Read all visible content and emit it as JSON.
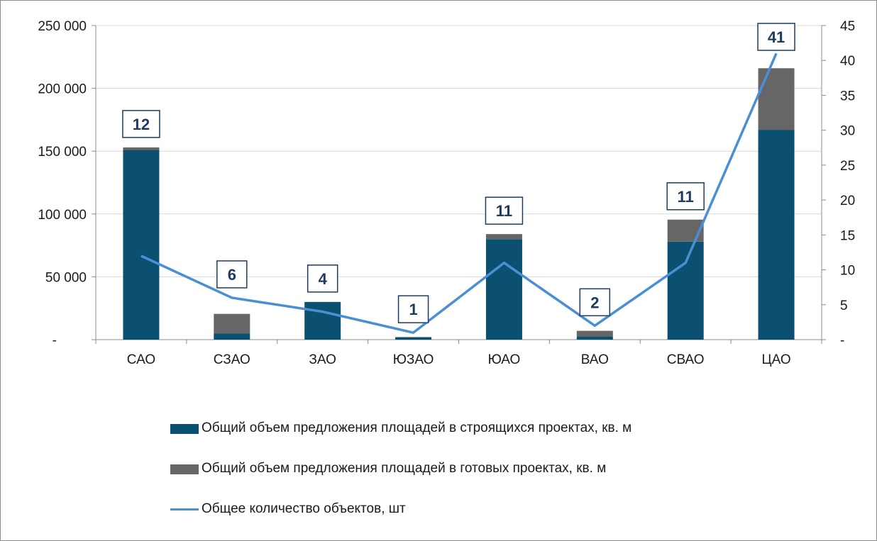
{
  "chart_data": {
    "type": "bar",
    "stacked": true,
    "categories": [
      "САО",
      "СЗАО",
      "ЗАО",
      "ЮЗАО",
      "ЮАО",
      "ВАО",
      "СВАО",
      "ЦАО"
    ],
    "series": [
      {
        "name": "Общий объем предложения площадей в строящихся проектах, кв. м",
        "kind": "bar",
        "axis": "left",
        "color": "#0b5070",
        "values": [
          151000,
          5000,
          30000,
          2000,
          80000,
          2500,
          78000,
          167000
        ]
      },
      {
        "name": "Общий объем предложения площадей в готовых проектах, кв. м",
        "kind": "bar",
        "axis": "left",
        "color": "#666666",
        "values": [
          2000,
          15500,
          0,
          0,
          4000,
          4500,
          17500,
          49000
        ]
      },
      {
        "name": "Общее количество объектов, шт",
        "kind": "line",
        "axis": "right",
        "color": "#4a8fd4",
        "values": [
          12,
          6,
          4,
          1,
          11,
          2,
          11,
          41
        ],
        "labels": [
          "12",
          "6",
          "4",
          "1",
          "11",
          "2",
          "11",
          "41"
        ]
      }
    ],
    "y_left": {
      "range": [
        0,
        250000
      ],
      "ticks": [
        "-",
        "50 000",
        "100 000",
        "150 000",
        "200 000",
        "250 000"
      ],
      "tick_values": [
        0,
        50000,
        100000,
        150000,
        200000,
        250000
      ]
    },
    "y_right": {
      "range": [
        0,
        45
      ],
      "ticks": [
        "-",
        "5",
        "10",
        "15",
        "20",
        "25",
        "30",
        "35",
        "40",
        "45"
      ],
      "tick_values": [
        0,
        5,
        10,
        15,
        20,
        25,
        30,
        35,
        40,
        45
      ]
    },
    "grid": true,
    "legend_position": "bottom"
  }
}
